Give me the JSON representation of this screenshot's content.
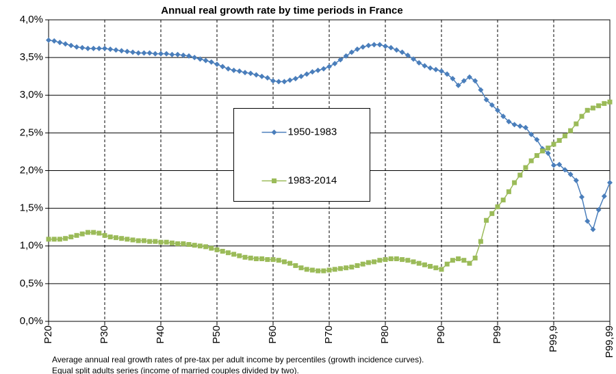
{
  "chart_data": {
    "type": "line",
    "title": "Annual real growth rate by time periods in France",
    "footnote": [
      "Average annual real growth rates of pre-tax per adult income by percentiles (growth incidence curves).",
      "Equal split adults series (income of married couples divided by two)."
    ],
    "categories": [
      "P20",
      null,
      null,
      null,
      null,
      null,
      null,
      null,
      null,
      null,
      "P30",
      null,
      null,
      null,
      null,
      null,
      null,
      null,
      null,
      null,
      "P40",
      null,
      null,
      null,
      null,
      null,
      null,
      null,
      null,
      null,
      "P50",
      null,
      null,
      null,
      null,
      null,
      null,
      null,
      null,
      null,
      "P60",
      null,
      null,
      null,
      null,
      null,
      null,
      null,
      null,
      null,
      "P70",
      null,
      null,
      null,
      null,
      null,
      null,
      null,
      null,
      null,
      "P80",
      null,
      null,
      null,
      null,
      null,
      null,
      null,
      null,
      null,
      "P90",
      null,
      null,
      null,
      null,
      null,
      null,
      null,
      null,
      null,
      "P99",
      null,
      null,
      null,
      null,
      null,
      null,
      null,
      null,
      null,
      "P99,9",
      null,
      null,
      null,
      null,
      null,
      null,
      null,
      null,
      null,
      "P99,99"
    ],
    "series": [
      {
        "name": "1950-1983",
        "color": "#4a7ebb",
        "marker": "diamond",
        "values": [
          3.73,
          3.72,
          3.7,
          3.68,
          3.66,
          3.64,
          3.63,
          3.62,
          3.62,
          3.62,
          3.62,
          3.61,
          3.6,
          3.59,
          3.58,
          3.57,
          3.56,
          3.56,
          3.56,
          3.55,
          3.55,
          3.55,
          3.54,
          3.54,
          3.53,
          3.52,
          3.5,
          3.48,
          3.46,
          3.44,
          3.41,
          3.38,
          3.35,
          3.33,
          3.32,
          3.3,
          3.29,
          3.27,
          3.25,
          3.23,
          3.19,
          3.18,
          3.18,
          3.2,
          3.22,
          3.25,
          3.28,
          3.31,
          3.33,
          3.35,
          3.38,
          3.42,
          3.47,
          3.52,
          3.57,
          3.61,
          3.64,
          3.66,
          3.67,
          3.67,
          3.65,
          3.63,
          3.6,
          3.57,
          3.53,
          3.48,
          3.43,
          3.39,
          3.36,
          3.34,
          3.32,
          3.28,
          3.22,
          3.13,
          3.19,
          3.24,
          3.19,
          3.07,
          2.94,
          2.87,
          2.8,
          2.72,
          2.65,
          2.61,
          2.59,
          2.57,
          2.48,
          2.41,
          2.29,
          2.23,
          2.07,
          2.08,
          2.01,
          1.95,
          1.87,
          1.65,
          1.33,
          1.22,
          1.48,
          1.66,
          1.84
        ]
      },
      {
        "name": "1983-2014",
        "color": "#9bbb59",
        "marker": "square",
        "values": [
          1.09,
          1.09,
          1.09,
          1.1,
          1.12,
          1.14,
          1.16,
          1.18,
          1.18,
          1.17,
          1.14,
          1.12,
          1.11,
          1.1,
          1.09,
          1.08,
          1.07,
          1.07,
          1.06,
          1.06,
          1.05,
          1.05,
          1.04,
          1.03,
          1.03,
          1.02,
          1.01,
          1.0,
          0.99,
          0.97,
          0.95,
          0.93,
          0.91,
          0.89,
          0.87,
          0.85,
          0.84,
          0.83,
          0.83,
          0.82,
          0.82,
          0.81,
          0.79,
          0.77,
          0.74,
          0.71,
          0.69,
          0.68,
          0.67,
          0.67,
          0.68,
          0.69,
          0.7,
          0.71,
          0.72,
          0.74,
          0.76,
          0.78,
          0.79,
          0.81,
          0.82,
          0.83,
          0.83,
          0.82,
          0.81,
          0.79,
          0.77,
          0.75,
          0.73,
          0.71,
          0.69,
          0.76,
          0.81,
          0.83,
          0.81,
          0.77,
          0.84,
          1.06,
          1.34,
          1.43,
          1.52,
          1.61,
          1.72,
          1.84,
          1.94,
          2.04,
          2.13,
          2.2,
          2.26,
          2.3,
          2.35,
          2.4,
          2.46,
          2.53,
          2.62,
          2.72,
          2.8,
          2.83,
          2.86,
          2.89,
          2.91
        ]
      }
    ],
    "ylim": [
      0,
      4
    ],
    "yticks": [
      {
        "value": 0,
        "label": "0,0%"
      },
      {
        "value": 0.5,
        "label": "0,5%"
      },
      {
        "value": 1,
        "label": "1,0%"
      },
      {
        "value": 1.5,
        "label": "1,5%"
      },
      {
        "value": 2,
        "label": "2,0%"
      },
      {
        "value": 2.5,
        "label": "2,5%"
      },
      {
        "value": 3,
        "label": "3,0%"
      },
      {
        "value": 3.5,
        "label": "3,5%"
      },
      {
        "value": 4,
        "label": "4,0%"
      }
    ],
    "grid": true,
    "legend": "center"
  }
}
